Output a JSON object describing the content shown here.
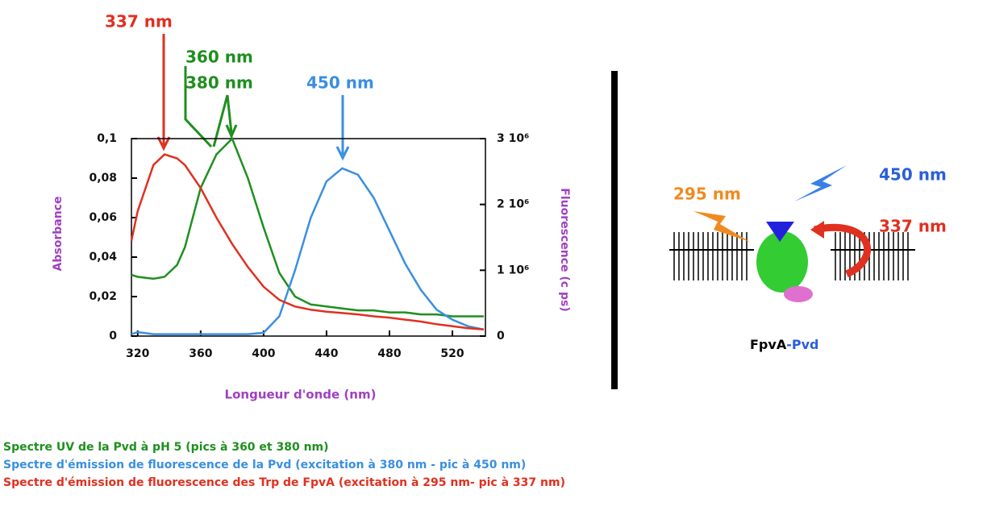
{
  "chart_data": {
    "type": "line",
    "x": [
      316,
      320,
      330,
      337,
      345,
      350,
      360,
      370,
      380,
      390,
      400,
      410,
      420,
      430,
      440,
      450,
      460,
      470,
      480,
      490,
      500,
      510,
      520,
      530,
      540
    ],
    "xlim": [
      316,
      541
    ],
    "xticks": [
      320,
      360,
      400,
      440,
      480,
      520
    ],
    "ylim": [
      0,
      0.1
    ],
    "yticks": [
      0,
      {
        "value": 0.02,
        "label": "0,02"
      },
      {
        "value": 0.04,
        "label": "0,04"
      },
      {
        "value": 0.06,
        "label": "0,06"
      },
      {
        "value": 0.08,
        "label": "0,08"
      },
      {
        "value": 0.1,
        "label": "0,1"
      }
    ],
    "y2lim": [
      0,
      3000000
    ],
    "y2ticks": [
      0,
      {
        "value": 1000000,
        "label": "1 10⁶"
      },
      {
        "value": 2000000,
        "label": "2 10⁶"
      },
      {
        "value": 3000000,
        "label": "3 10⁶"
      }
    ],
    "xlabel": "Longueur d'onde (nm)",
    "ylabel": "Absorbance",
    "y2label": "Fluorescence (c ps)",
    "series": [
      {
        "name": "Spectre UV de la Pvd à pH 5 (pics à 360 et 380 nm)",
        "color": "#1f8f1f",
        "values": [
          0.031,
          0.03,
          0.029,
          0.03,
          0.036,
          0.045,
          0.075,
          0.092,
          0.1,
          0.08,
          0.055,
          0.032,
          0.02,
          0.016,
          0.015,
          0.014,
          0.013,
          0.013,
          0.012,
          0.012,
          0.011,
          0.011,
          0.01,
          0.01,
          0.01
        ]
      },
      {
        "name": "Spectre d'émission de fluorescence de la Pvd (excitation à 380 nm - pic à 450 nm)",
        "color": "#3a8fe0",
        "axis": "y2",
        "values": [
          30000,
          60000,
          30000,
          30000,
          30000,
          30000,
          30000,
          30000,
          30000,
          30000,
          50000,
          300000,
          1000000,
          1800000,
          2350000,
          2550000,
          2450000,
          2100000,
          1600000,
          1100000,
          700000,
          400000,
          250000,
          150000,
          100000
        ]
      },
      {
        "name": "Spectre d'émission de fluorescence des Trp de FpvA (excitation à 295 nm- pic à 337 nm)",
        "color": "#e03020",
        "axis": "y2",
        "values": [
          1450000,
          1900000,
          2600000,
          2760000,
          2700000,
          2600000,
          2250000,
          1800000,
          1400000,
          1050000,
          750000,
          550000,
          450000,
          400000,
          370000,
          350000,
          330000,
          300000,
          280000,
          250000,
          220000,
          180000,
          150000,
          120000,
          100000
        ]
      }
    ],
    "annotations": [
      "337 nm",
      "360 nm",
      "380 nm",
      "450 nm"
    ]
  },
  "diagram": {
    "labels": [
      "295 nm",
      "450 nm",
      "337 nm"
    ],
    "name": "FpvA",
    "name_suffix": "-Pvd"
  }
}
